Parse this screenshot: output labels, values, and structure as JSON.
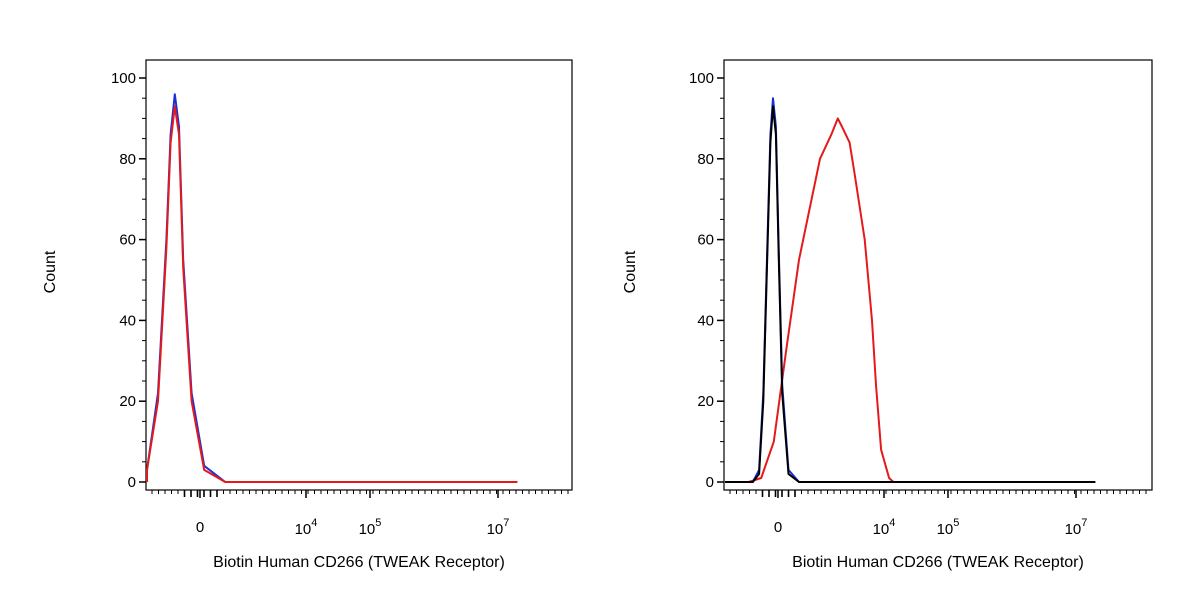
{
  "chart_data": [
    {
      "type": "line",
      "panel": "left",
      "xlabel": "Biotin Human CD266 (TWEAK Receptor)",
      "ylabel": "Count",
      "xscale": "biexponential",
      "ylim": [
        0,
        100
      ],
      "y_ticks": [
        "0",
        "20",
        "40",
        "60",
        "80",
        "100"
      ],
      "x_ticks": [
        {
          "value": 0,
          "base": "0",
          "exp": ""
        },
        {
          "value": 10000,
          "base": "10",
          "exp": "4"
        },
        {
          "value": 100000,
          "base": "10",
          "exp": "5"
        },
        {
          "value": 10000000,
          "base": "10",
          "exp": "7"
        }
      ],
      "grid": false,
      "legend": "none",
      "series": [
        {
          "color": "#1c2fd6",
          "points": [
            [
              -2000,
              0
            ],
            [
              -1400,
              3
            ],
            [
              -1000,
              22
            ],
            [
              -800,
              60
            ],
            [
              -700,
              86
            ],
            [
              -600,
              96
            ],
            [
              -500,
              88
            ],
            [
              -400,
              55
            ],
            [
              -200,
              22
            ],
            [
              100,
              4
            ],
            [
              600,
              0
            ],
            [
              20000000,
              0
            ]
          ]
        },
        {
          "color": "#e31a1c",
          "points": [
            [
              -2000,
              0
            ],
            [
              -1400,
              3
            ],
            [
              -1000,
              20
            ],
            [
              -800,
              58
            ],
            [
              -700,
              84
            ],
            [
              -600,
              93
            ],
            [
              -500,
              86
            ],
            [
              -400,
              53
            ],
            [
              -200,
              20
            ],
            [
              100,
              3
            ],
            [
              600,
              0
            ],
            [
              20000000,
              0
            ]
          ]
        }
      ]
    },
    {
      "type": "line",
      "panel": "right",
      "xlabel": "Biotin Human CD266 (TWEAK Receptor)",
      "ylabel": "Count",
      "xscale": "biexponential",
      "ylim": [
        0,
        100
      ],
      "y_ticks": [
        "0",
        "20",
        "40",
        "60",
        "80",
        "100"
      ],
      "x_ticks": [
        {
          "value": 0,
          "base": "0",
          "exp": ""
        },
        {
          "value": 10000,
          "base": "10",
          "exp": "4"
        },
        {
          "value": 100000,
          "base": "10",
          "exp": "5"
        },
        {
          "value": 10000000,
          "base": "10",
          "exp": "7"
        }
      ],
      "grid": false,
      "legend": "none",
      "series": [
        {
          "color": "#e31a1c",
          "points": [
            [
              -2000,
              0
            ],
            [
              -700,
              0
            ],
            [
              -400,
              1
            ],
            [
              -100,
              10
            ],
            [
              200,
              33
            ],
            [
              500,
              55
            ],
            [
              1000,
              80
            ],
            [
              1500,
              86
            ],
            [
              1900,
              90
            ],
            [
              2200,
              88
            ],
            [
              2900,
              84
            ],
            [
              3500,
              76
            ],
            [
              5000,
              60
            ],
            [
              6500,
              40
            ],
            [
              7500,
              24
            ],
            [
              9000,
              8
            ],
            [
              12000,
              1
            ],
            [
              14000,
              0
            ],
            [
              20000000,
              0
            ]
          ]
        },
        {
          "color": "#1c2fd6",
          "points": [
            [
              -2000,
              0
            ],
            [
              -600,
              0
            ],
            [
              -450,
              3
            ],
            [
              -350,
              22
            ],
            [
              -250,
              60
            ],
            [
              -180,
              86
            ],
            [
              -120,
              95
            ],
            [
              -50,
              88
            ],
            [
              20,
              57
            ],
            [
              100,
              24
            ],
            [
              250,
              3
            ],
            [
              500,
              0
            ],
            [
              20000000,
              0
            ]
          ]
        },
        {
          "color": "#000000",
          "points": [
            [
              -2000,
              0
            ],
            [
              -600,
              0
            ],
            [
              -450,
              2
            ],
            [
              -350,
              20
            ],
            [
              -250,
              58
            ],
            [
              -180,
              84
            ],
            [
              -120,
              93
            ],
            [
              -50,
              86
            ],
            [
              20,
              55
            ],
            [
              100,
              22
            ],
            [
              250,
              2
            ],
            [
              500,
              0
            ],
            [
              20000000,
              0
            ]
          ]
        }
      ]
    }
  ]
}
